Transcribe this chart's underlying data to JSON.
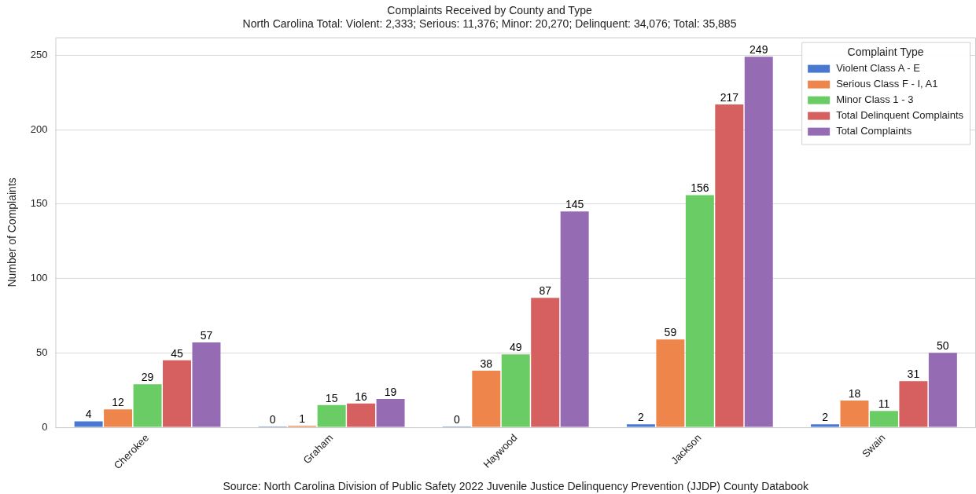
{
  "chart_data": {
    "type": "bar",
    "title": "Complaints Received by County and Type",
    "subtitle": "North Carolina Total: Violent: 2,333; Serious: 11,376; Minor: 20,270; Delinquent: 34,076; Total: 35,885",
    "ylabel": "Number of Complaints",
    "legend_title": "Complaint Type",
    "annotations": [
      "Source: North Carolina Division of Public Safety 2022 Juvenile Justice Delinquency Prevention (JJDP) County Databook"
    ],
    "categories": [
      "Cherokee",
      "Graham",
      "Haywood",
      "Jackson",
      "Swain"
    ],
    "series": [
      {
        "name": "Violent Class A - E",
        "color": "#4878d0",
        "values": [
          4,
          0,
          0,
          2,
          2
        ]
      },
      {
        "name": "Serious Class F - I, A1",
        "color": "#ee854a",
        "values": [
          12,
          1,
          38,
          59,
          18
        ]
      },
      {
        "name": "Minor Class 1 - 3",
        "color": "#6acc64",
        "values": [
          29,
          15,
          49,
          156,
          11
        ]
      },
      {
        "name": "Total Delinquent Complaints",
        "color": "#d65f5f",
        "values": [
          45,
          16,
          87,
          217,
          31
        ]
      },
      {
        "name": "Total Complaints",
        "color": "#956cb4",
        "values": [
          57,
          19,
          145,
          249,
          50
        ]
      }
    ],
    "ylim": [
      0,
      262
    ],
    "yticks": [
      0,
      50,
      100,
      150,
      200,
      250
    ],
    "grid": "y",
    "legend": "top right",
    "data_labels": true
  }
}
